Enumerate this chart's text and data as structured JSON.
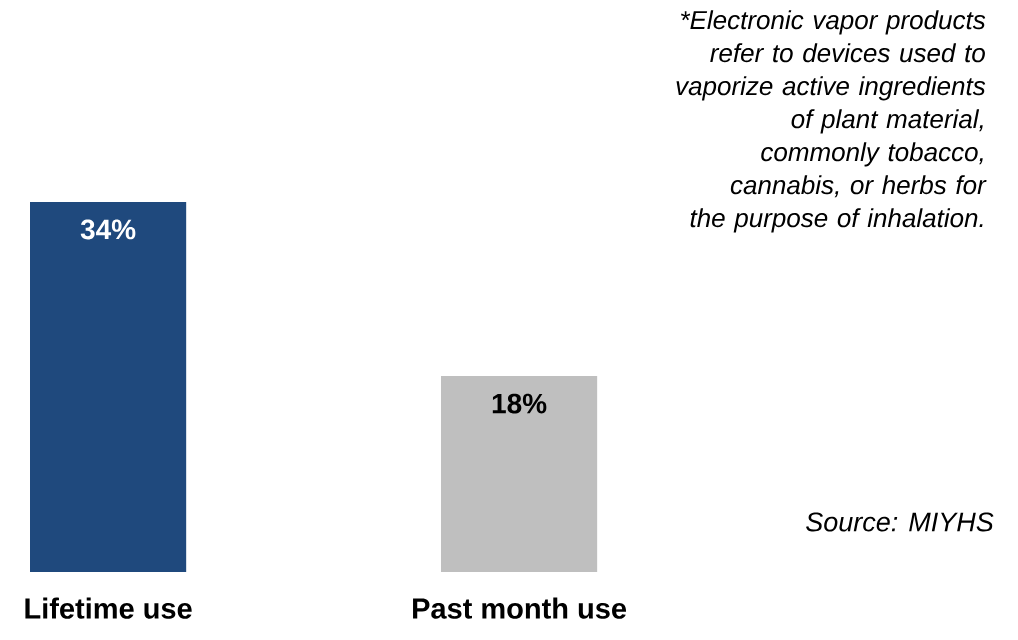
{
  "chart_data": {
    "type": "bar",
    "categories": [
      "Lifetime use",
      "Past month use"
    ],
    "values": [
      34,
      18
    ],
    "colors": [
      "#1f497d",
      "#bfbfbf"
    ],
    "value_labels": [
      "34%",
      "18%"
    ],
    "annotations": [
      "*Electronic vapor products refer to devices used to vaporize active ingredients of plant material, commonly tobacco, cannabis, or herbs for the purpose of inhalation.",
      "Source: MIYHS"
    ]
  }
}
